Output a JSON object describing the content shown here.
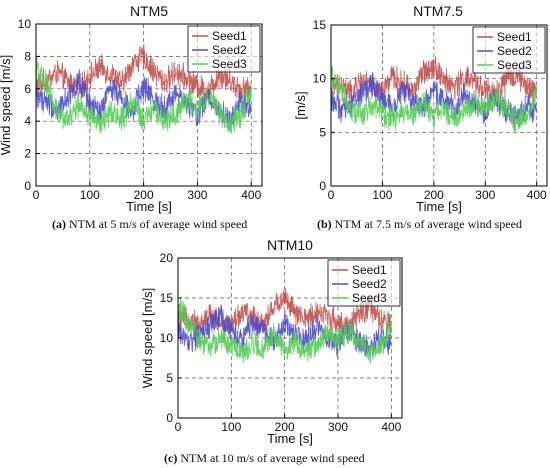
{
  "chart_data": [
    {
      "type": "line",
      "title": "NTM5",
      "xlabel": "Time [s]",
      "ylabel": "Wind speed [m/s]",
      "xlim": [
        0,
        420
      ],
      "ylim": [
        0,
        10
      ],
      "xticks": [
        0,
        100,
        200,
        300,
        400
      ],
      "yticks": [
        0,
        2,
        4,
        6,
        8,
        10
      ],
      "grid": true,
      "legend": "top-right",
      "caption": {
        "label": "(a)",
        "text": " NTM at 5 m/s of average wind speed"
      },
      "series": [
        {
          "name": "Seed1",
          "color": "#c0504d",
          "x": [
            0,
            20,
            40,
            60,
            80,
            100,
            120,
            140,
            160,
            180,
            200,
            220,
            240,
            260,
            280,
            300,
            320,
            340,
            360,
            380,
            400
          ],
          "y": [
            6.2,
            6.5,
            7.0,
            6.4,
            6.0,
            6.8,
            7.3,
            6.9,
            6.3,
            7.6,
            8.0,
            7.0,
            6.4,
            7.1,
            6.6,
            6.2,
            5.8,
            6.9,
            6.5,
            6.0,
            5.9
          ]
        },
        {
          "name": "Seed2",
          "color": "#4b4bcc",
          "x": [
            0,
            20,
            40,
            60,
            80,
            100,
            120,
            140,
            160,
            180,
            200,
            220,
            240,
            260,
            280,
            300,
            320,
            340,
            360,
            380,
            400
          ],
          "y": [
            5.6,
            5.2,
            4.6,
            5.6,
            6.4,
            5.0,
            4.5,
            6.2,
            5.4,
            4.7,
            6.1,
            5.3,
            4.8,
            5.8,
            5.0,
            4.4,
            5.5,
            4.7,
            4.1,
            5.2,
            4.6
          ]
        },
        {
          "name": "Seed3",
          "color": "#55cc55",
          "x": [
            0,
            20,
            40,
            60,
            80,
            100,
            120,
            140,
            160,
            180,
            200,
            220,
            240,
            260,
            280,
            300,
            320,
            340,
            360,
            380,
            400
          ],
          "y": [
            7.2,
            6.3,
            4.6,
            4.1,
            5.0,
            4.3,
            3.8,
            4.6,
            4.1,
            5.2,
            4.0,
            4.7,
            3.9,
            4.5,
            5.3,
            4.8,
            5.6,
            4.6,
            3.8,
            4.4,
            6.0
          ]
        }
      ]
    },
    {
      "type": "line",
      "title": "NTM7.5",
      "xlabel": "Time [s]",
      "ylabel": "[m/s]",
      "xlim": [
        0,
        420
      ],
      "ylim": [
        0,
        15
      ],
      "xticks": [
        0,
        100,
        200,
        300,
        400
      ],
      "yticks": [
        0,
        5,
        10,
        15
      ],
      "grid": true,
      "legend": "top-right",
      "caption": {
        "label": "(b)",
        "text": " NTM at 7.5 m/s of average wind speed"
      },
      "series": [
        {
          "name": "Seed1",
          "color": "#c0504d",
          "x": [
            0,
            20,
            40,
            60,
            80,
            100,
            120,
            140,
            160,
            180,
            200,
            220,
            240,
            260,
            280,
            300,
            320,
            340,
            360,
            380,
            400
          ],
          "y": [
            9.0,
            9.4,
            8.6,
            9.8,
            9.1,
            8.8,
            10.2,
            9.5,
            8.9,
            10.6,
            11.3,
            9.9,
            9.2,
            10.1,
            9.6,
            9.0,
            8.5,
            9.8,
            10.4,
            9.1,
            8.9
          ]
        },
        {
          "name": "Seed2",
          "color": "#4b4bcc",
          "x": [
            0,
            20,
            40,
            60,
            80,
            100,
            120,
            140,
            160,
            180,
            200,
            220,
            240,
            260,
            280,
            300,
            320,
            340,
            360,
            380,
            400
          ],
          "y": [
            8.2,
            7.0,
            7.8,
            8.6,
            9.5,
            8.0,
            7.2,
            9.0,
            8.1,
            7.4,
            8.8,
            8.0,
            7.1,
            8.6,
            7.6,
            6.8,
            8.2,
            7.0,
            6.3,
            7.6,
            6.9
          ]
        },
        {
          "name": "Seed3",
          "color": "#55cc55",
          "x": [
            0,
            20,
            40,
            60,
            80,
            100,
            120,
            140,
            160,
            180,
            200,
            220,
            240,
            260,
            280,
            300,
            320,
            340,
            360,
            380,
            400
          ],
          "y": [
            10.5,
            9.0,
            7.2,
            6.6,
            7.8,
            6.9,
            6.1,
            7.0,
            6.5,
            7.8,
            6.4,
            7.2,
            6.2,
            6.9,
            7.9,
            7.3,
            8.2,
            7.0,
            6.1,
            6.8,
            8.6
          ]
        }
      ]
    },
    {
      "type": "line",
      "title": "NTM10",
      "xlabel": "Time [s]",
      "ylabel": "Wind speed [m/s]",
      "xlim": [
        0,
        420
      ],
      "ylim": [
        0,
        20
      ],
      "xticks": [
        0,
        100,
        200,
        300,
        400
      ],
      "yticks": [
        0,
        5,
        10,
        15,
        20
      ],
      "grid": true,
      "legend": "top-right",
      "caption": {
        "label": "(c)",
        "text": " NTM at 10 m/s of average wind speed"
      },
      "series": [
        {
          "name": "Seed1",
          "color": "#c0504d",
          "x": [
            0,
            20,
            40,
            60,
            80,
            100,
            120,
            140,
            160,
            180,
            200,
            220,
            240,
            260,
            280,
            300,
            320,
            340,
            360,
            380,
            400
          ],
          "y": [
            12.0,
            12.6,
            11.4,
            12.9,
            12.1,
            11.6,
            13.3,
            12.5,
            11.8,
            13.9,
            15.2,
            13.0,
            12.2,
            13.4,
            12.8,
            12.0,
            11.2,
            13.0,
            13.8,
            12.1,
            11.7
          ]
        },
        {
          "name": "Seed2",
          "color": "#4b4bcc",
          "x": [
            0,
            20,
            40,
            60,
            80,
            100,
            120,
            140,
            160,
            180,
            200,
            220,
            240,
            260,
            280,
            300,
            320,
            340,
            360,
            380,
            400
          ],
          "y": [
            11.0,
            9.4,
            10.4,
            11.6,
            12.8,
            10.8,
            9.6,
            12.2,
            10.9,
            9.8,
            11.9,
            10.7,
            9.5,
            11.5,
            10.2,
            9.1,
            11.0,
            9.4,
            8.5,
            10.2,
            9.3
          ]
        },
        {
          "name": "Seed3",
          "color": "#55cc55",
          "x": [
            0,
            20,
            40,
            60,
            80,
            100,
            120,
            140,
            160,
            180,
            200,
            220,
            240,
            260,
            280,
            300,
            320,
            340,
            360,
            380,
            400
          ],
          "y": [
            14.0,
            12.0,
            9.6,
            8.8,
            10.4,
            9.2,
            8.2,
            9.3,
            8.7,
            10.4,
            8.6,
            9.6,
            8.3,
            9.2,
            10.6,
            9.8,
            11.0,
            9.3,
            8.1,
            9.0,
            11.4
          ]
        }
      ]
    }
  ]
}
